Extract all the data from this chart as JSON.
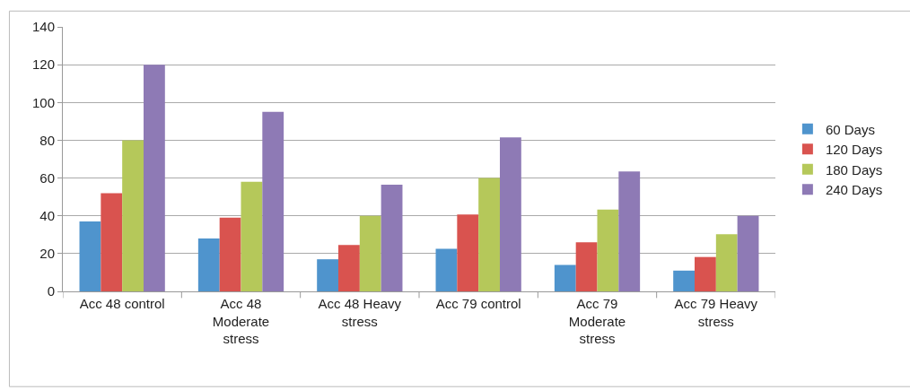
{
  "chart_data": {
    "type": "bar",
    "categories": [
      "Acc 48 control",
      "Acc 48 Moderate stress",
      "Acc 48 Heavy stress",
      "Acc 79 control",
      "Acc 79 Moderate stress",
      "Acc 79 Heavy stress"
    ],
    "series": [
      {
        "name": "60 Days",
        "color": "#4f94cd",
        "values": [
          37,
          28,
          17,
          22.6,
          14,
          11
        ]
      },
      {
        "name": "120 Days",
        "color": "#d9534f",
        "values": [
          52,
          39,
          24.6,
          40.7,
          26,
          18.2
        ]
      },
      {
        "name": "180 Days",
        "color": "#b5c85a",
        "values": [
          80,
          58,
          40,
          60,
          43.3,
          30.2
        ]
      },
      {
        "name": "240 Days",
        "color": "#8e7ab5",
        "values": [
          120,
          95,
          56.5,
          81.5,
          63.5,
          40
        ]
      }
    ],
    "ylim": [
      0,
      140
    ],
    "yticks": [
      0,
      20,
      40,
      60,
      80,
      100,
      120,
      140
    ],
    "grid": "y",
    "legend": "right"
  }
}
